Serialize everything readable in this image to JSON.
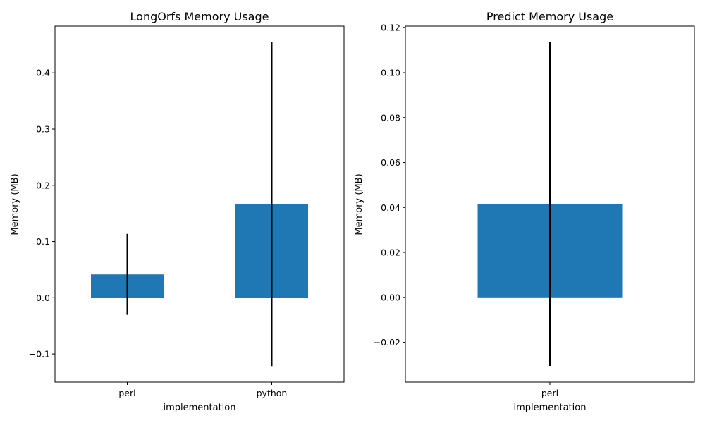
{
  "chart_data": [
    {
      "type": "bar",
      "title": "LongOrfs Memory Usage",
      "xlabel": "implementation",
      "ylabel": "Memory (MB)",
      "categories": [
        "perl",
        "python"
      ],
      "values": [
        0.0415,
        0.1665
      ],
      "error_low": [
        -0.0305,
        -0.1215
      ],
      "error_high": [
        0.1135,
        0.4545
      ],
      "ylim": [
        -0.15,
        0.483
      ],
      "yticks": [
        -0.1,
        0.0,
        0.1,
        0.2,
        0.3,
        0.4
      ],
      "ytick_labels": [
        "−0.1",
        "0.0",
        "0.1",
        "0.2",
        "0.3",
        "0.4"
      ],
      "grid": false,
      "bar_color": "#1f77b4",
      "error_color": "#000000"
    },
    {
      "type": "bar",
      "title": "Predict Memory Usage",
      "xlabel": "implementation",
      "ylabel": "Memory (MB)",
      "categories": [
        "perl"
      ],
      "values": [
        0.0415
      ],
      "error_low": [
        -0.0305
      ],
      "error_high": [
        0.1135
      ],
      "ylim": [
        -0.0377,
        0.1207
      ],
      "yticks": [
        -0.02,
        0.0,
        0.02,
        0.04,
        0.06,
        0.08,
        0.1,
        0.12
      ],
      "ytick_labels": [
        "−0.02",
        "0.00",
        "0.02",
        "0.04",
        "0.06",
        "0.08",
        "0.10",
        "0.12"
      ],
      "grid": false,
      "bar_color": "#1f77b4",
      "error_color": "#000000"
    }
  ]
}
